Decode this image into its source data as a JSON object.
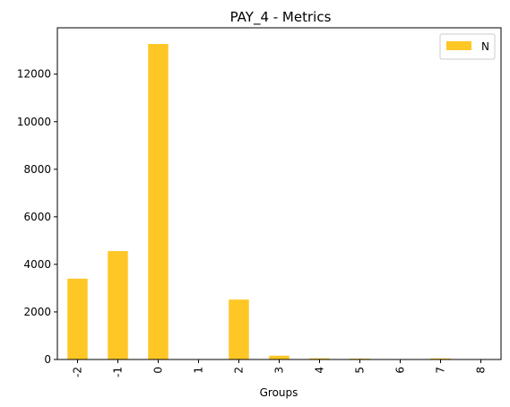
{
  "chart_data": {
    "type": "bar",
    "title": "PAY_4 - Metrics",
    "xlabel": "Groups",
    "ylabel": "",
    "categories": [
      "-2",
      "-1",
      "0",
      "1",
      "2",
      "3",
      "4",
      "5",
      "6",
      "7",
      "8"
    ],
    "series": [
      {
        "name": "N",
        "color": "#FFC726",
        "values": [
          3400,
          4560,
          13270,
          2,
          2520,
          160,
          50,
          35,
          5,
          45,
          2
        ]
      }
    ],
    "ylim": [
      0,
      13950
    ],
    "yticks": [
      0,
      2000,
      4000,
      6000,
      8000,
      10000,
      12000
    ],
    "grid": false,
    "legend_position": "top-right"
  }
}
